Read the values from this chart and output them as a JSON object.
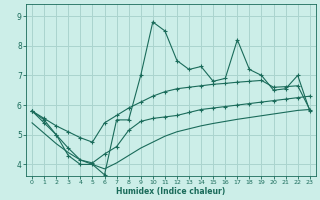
{
  "xlabel": "Humidex (Indice chaleur)",
  "bg_color": "#cceee8",
  "grid_color": "#aad4ce",
  "line_color": "#1a6b5a",
  "x_ticks": [
    0,
    1,
    2,
    3,
    4,
    5,
    6,
    7,
    8,
    9,
    10,
    11,
    12,
    13,
    14,
    15,
    16,
    17,
    18,
    19,
    20,
    21,
    22,
    23
  ],
  "y_ticks": [
    4,
    5,
    6,
    7,
    8,
    9
  ],
  "ylim": [
    3.6,
    9.4
  ],
  "xlim": [
    -0.5,
    23.5
  ],
  "x_values": [
    0,
    1,
    2,
    3,
    4,
    5,
    6,
    7,
    8,
    9,
    10,
    11,
    12,
    13,
    14,
    15,
    16,
    17,
    18,
    19,
    20,
    21,
    22,
    23
  ],
  "line_high": [
    5.8,
    5.5,
    5.0,
    4.3,
    4.0,
    4.0,
    3.65,
    5.5,
    5.5,
    7.0,
    8.8,
    8.5,
    7.5,
    7.2,
    7.3,
    6.8,
    6.9,
    8.2,
    7.2,
    7.0,
    6.5,
    6.55,
    7.0,
    5.8
  ],
  "line_low": [
    5.8,
    5.4,
    5.0,
    4.55,
    4.15,
    4.05,
    4.35,
    4.6,
    5.15,
    5.45,
    5.55,
    5.6,
    5.65,
    5.75,
    5.85,
    5.9,
    5.95,
    6.0,
    6.05,
    6.1,
    6.15,
    6.2,
    6.25,
    6.3
  ],
  "line_upper_diag": [
    5.8,
    5.55,
    5.3,
    5.1,
    4.9,
    4.75,
    5.4,
    5.65,
    5.9,
    6.1,
    6.3,
    6.45,
    6.55,
    6.6,
    6.65,
    6.7,
    6.73,
    6.77,
    6.8,
    6.83,
    6.6,
    6.62,
    6.65,
    5.85
  ],
  "line_lower_diag": [
    5.4,
    5.05,
    4.7,
    4.4,
    4.15,
    4.0,
    3.85,
    4.05,
    4.3,
    4.55,
    4.75,
    4.95,
    5.1,
    5.2,
    5.3,
    5.38,
    5.45,
    5.52,
    5.58,
    5.64,
    5.7,
    5.76,
    5.82,
    5.85
  ]
}
